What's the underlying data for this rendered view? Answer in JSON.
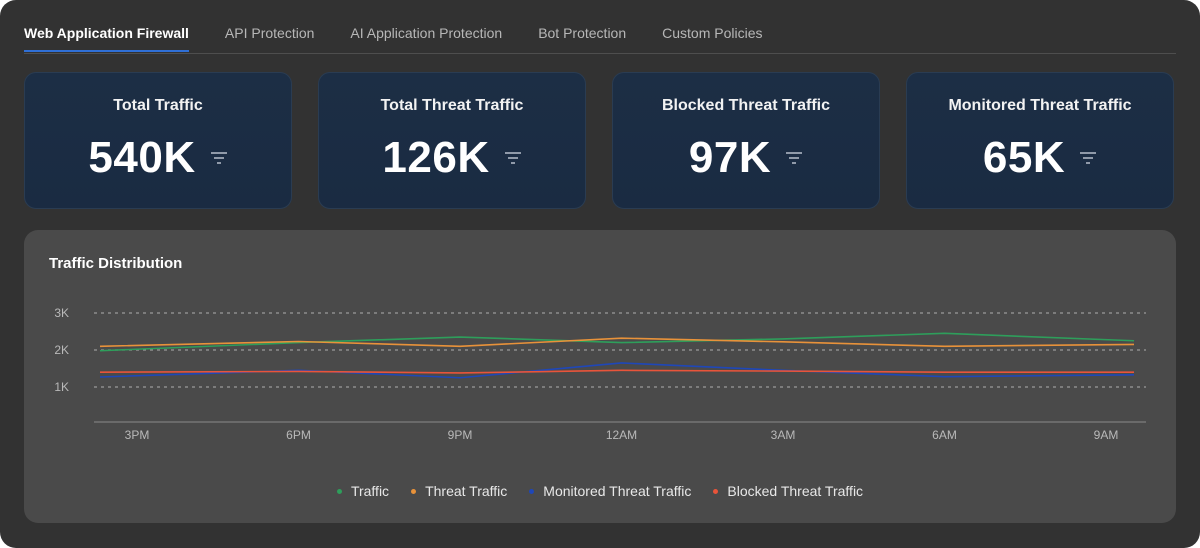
{
  "tabs": [
    {
      "label": "Web Application Firewall",
      "active": true
    },
    {
      "label": "API Protection",
      "active": false
    },
    {
      "label": "AI Application Protection",
      "active": false
    },
    {
      "label": "Bot Protection",
      "active": false
    },
    {
      "label": "Custom Policies",
      "active": false
    }
  ],
  "cards": [
    {
      "title": "Total Traffic",
      "value": "540K",
      "icon": "filter-icon"
    },
    {
      "title": "Total Threat Traffic",
      "value": "126K",
      "icon": "filter-icon"
    },
    {
      "title": "Blocked Threat Traffic",
      "value": "97K",
      "icon": "filter-icon"
    },
    {
      "title": "Monitored Threat Traffic",
      "value": "65K",
      "icon": "filter-icon"
    }
  ],
  "colors": {
    "accent": "#2f6fd6",
    "traffic": "#2e9e5b",
    "threat": "#e8923a",
    "monitored": "#1f47b8",
    "blocked": "#e8543a"
  },
  "chart_data": {
    "type": "line",
    "title": "Traffic Distribution",
    "x": [
      "3PM",
      "6PM",
      "9PM",
      "12AM",
      "3AM",
      "6AM",
      "9AM"
    ],
    "ylim": [
      0,
      3000
    ],
    "yticks": [
      1000,
      2000,
      3000
    ],
    "ytick_labels": [
      "1K",
      "2K",
      "3K"
    ],
    "grid": true,
    "legend_position": "bottom",
    "series": [
      {
        "name": "Traffic",
        "color": "#2e9e5b",
        "values": [
          1980,
          2200,
          2350,
          2200,
          2300,
          2450,
          2250
        ]
      },
      {
        "name": "Threat Traffic",
        "color": "#e8923a",
        "values": [
          2100,
          2230,
          2100,
          2320,
          2220,
          2100,
          2150
        ]
      },
      {
        "name": "Monitored Threat Traffic",
        "color": "#1f47b8",
        "values": [
          1270,
          1450,
          1250,
          1650,
          1450,
          1280,
          1330
        ]
      },
      {
        "name": "Blocked Threat Traffic",
        "color": "#e8543a",
        "values": [
          1400,
          1420,
          1380,
          1450,
          1430,
          1400,
          1400
        ]
      }
    ]
  }
}
